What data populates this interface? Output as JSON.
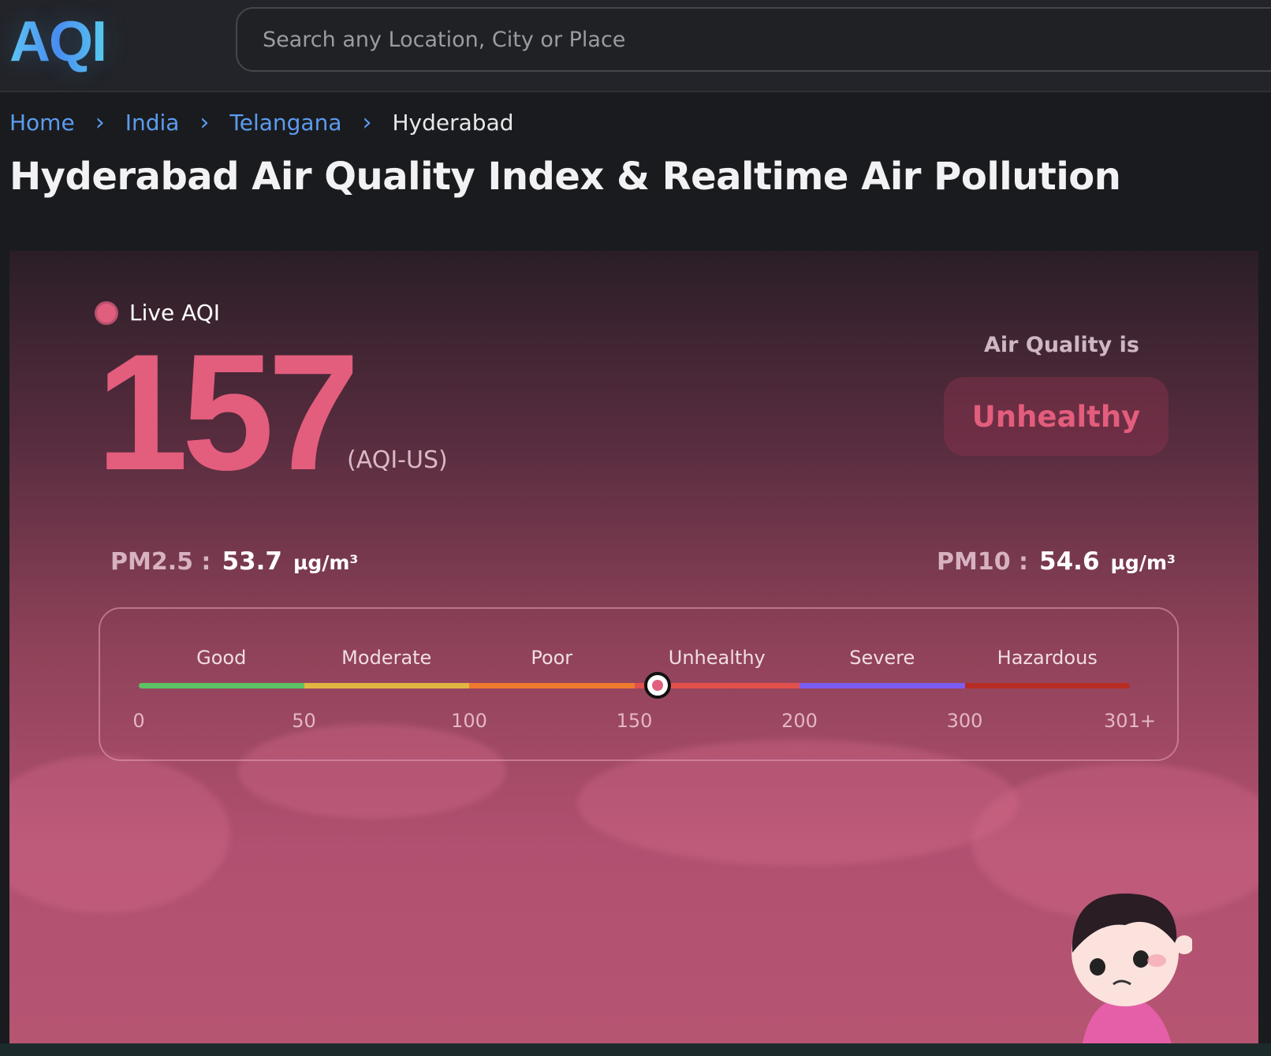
{
  "header": {
    "logo": "AQI",
    "search_placeholder": "Search any Location, City or Place"
  },
  "breadcrumb": [
    {
      "label": "Home"
    },
    {
      "label": "India"
    },
    {
      "label": "Telangana"
    },
    {
      "label": "Hyderabad"
    }
  ],
  "page_title": "Hyderabad Air Quality Index & Realtime Air Pollution",
  "aqi": {
    "live_label": "Live AQI",
    "value": "157",
    "unit": "(AQI-US)",
    "quality_label": "Air Quality is",
    "status": "Unhealthy",
    "status_color": "#e35d7c"
  },
  "pollutants": [
    {
      "label": "PM2.5 :",
      "value": "53.7",
      "unit": "µg/m³"
    },
    {
      "label": "PM10 :",
      "value": "54.6",
      "unit": "µg/m³"
    }
  ],
  "scale": {
    "categories": [
      {
        "label": "Good",
        "color": "#5cc264"
      },
      {
        "label": "Moderate",
        "color": "#e2b642"
      },
      {
        "label": "Poor",
        "color": "#ee7a30"
      },
      {
        "label": "Unhealthy",
        "color": "#e2504c"
      },
      {
        "label": "Severe",
        "color": "#7b5cf0"
      },
      {
        "label": "Hazardous",
        "color": "#b82c24"
      }
    ],
    "ticks": [
      "0",
      "50",
      "100",
      "150",
      "200",
      "300",
      "301+"
    ],
    "current_value": 157
  }
}
